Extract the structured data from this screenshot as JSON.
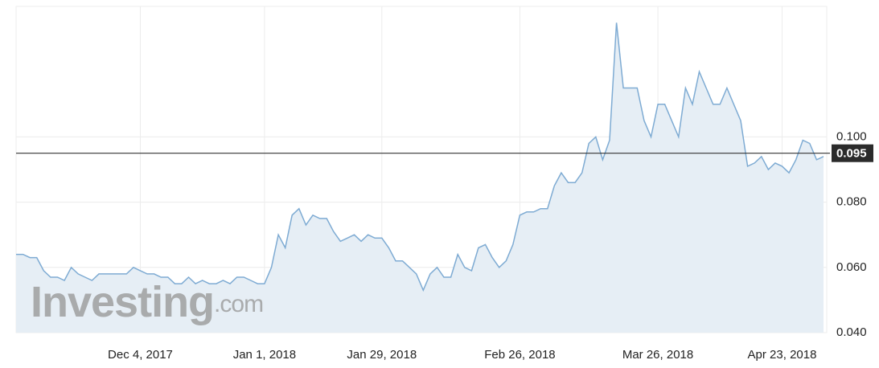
{
  "chart_data": {
    "type": "area",
    "watermark_brand": "Investing",
    "watermark_domain": ".com",
    "categories": [
      null,
      null,
      null,
      null,
      null,
      null,
      null,
      null,
      null,
      null,
      null,
      null,
      null,
      null,
      null,
      null,
      null,
      null,
      "Dec 4, 2017",
      null,
      null,
      null,
      null,
      null,
      null,
      null,
      null,
      null,
      null,
      null,
      null,
      null,
      null,
      null,
      null,
      null,
      "Jan 1, 2018",
      null,
      null,
      null,
      null,
      null,
      null,
      null,
      null,
      null,
      null,
      null,
      null,
      null,
      null,
      null,
      null,
      "Jan 29, 2018",
      null,
      null,
      null,
      null,
      null,
      null,
      null,
      null,
      null,
      null,
      null,
      null,
      null,
      null,
      null,
      null,
      null,
      null,
      null,
      "Feb 26, 2018",
      null,
      null,
      null,
      null,
      null,
      null,
      null,
      null,
      null,
      null,
      null,
      null,
      null,
      null,
      null,
      null,
      null,
      null,
      null,
      "Mar 26, 2018",
      null,
      null,
      null,
      null,
      null,
      null,
      null,
      null,
      null,
      null,
      null,
      null,
      null,
      null,
      null,
      null,
      null,
      "Apr 23, 2018",
      null,
      null,
      null,
      null,
      null,
      null
    ],
    "values": [
      0.064,
      0.064,
      0.063,
      0.063,
      0.059,
      0.057,
      0.057,
      0.056,
      0.06,
      0.058,
      0.057,
      0.056,
      0.058,
      0.058,
      0.058,
      0.058,
      0.058,
      0.06,
      0.059,
      0.058,
      0.058,
      0.057,
      0.057,
      0.055,
      0.055,
      0.057,
      0.055,
      0.056,
      0.055,
      0.055,
      0.056,
      0.055,
      0.057,
      0.057,
      0.056,
      0.055,
      0.055,
      0.06,
      0.07,
      0.066,
      0.076,
      0.078,
      0.073,
      0.076,
      0.075,
      0.075,
      0.071,
      0.068,
      0.069,
      0.07,
      0.068,
      0.07,
      0.069,
      0.069,
      0.066,
      0.062,
      0.062,
      0.06,
      0.058,
      0.053,
      0.058,
      0.06,
      0.057,
      0.057,
      0.064,
      0.06,
      0.059,
      0.066,
      0.067,
      0.063,
      0.06,
      0.062,
      0.067,
      0.076,
      0.077,
      0.077,
      0.078,
      0.078,
      0.085,
      0.089,
      0.086,
      0.086,
      0.089,
      0.098,
      0.1,
      0.093,
      0.099,
      0.135,
      0.115,
      0.115,
      0.115,
      0.105,
      0.1,
      0.11,
      0.11,
      0.105,
      0.1,
      0.115,
      0.11,
      0.12,
      0.115,
      0.11,
      0.11,
      0.115,
      0.11,
      0.105,
      0.091,
      0.092,
      0.094,
      0.09,
      0.092,
      0.091,
      0.089,
      0.093,
      0.099,
      0.098,
      0.093,
      0.094
    ],
    "color": "#7eabd3",
    "fill_color": "#e6eef5",
    "ylim": [
      0.04,
      0.14
    ],
    "yticks": [
      {
        "value": 0.04,
        "label": "0.040"
      },
      {
        "value": 0.06,
        "label": "0.060"
      },
      {
        "value": 0.08,
        "label": "0.080"
      },
      {
        "value": 0.1,
        "label": "0.100"
      }
    ],
    "grid": true,
    "last_price": {
      "value": 0.095,
      "label": "0.095"
    }
  }
}
